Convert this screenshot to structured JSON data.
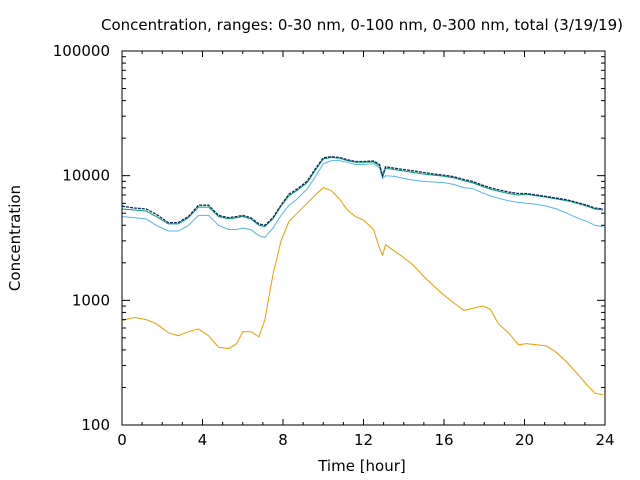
{
  "chart_data": {
    "type": "line",
    "title": "Concentration, ranges: 0-30 nm, 0-100 nm, 0-300 nm, total (3/19/19)",
    "xlabel": "Time [hour]",
    "ylabel": "Concentration",
    "xlim": [
      0,
      24
    ],
    "ylim": [
      100,
      100000
    ],
    "yscale": "log",
    "xticks": [
      0,
      4,
      8,
      12,
      16,
      20,
      24
    ],
    "yticks": [
      100,
      1000,
      10000,
      100000
    ],
    "ytick_labels": [
      "100",
      "1000",
      "10000",
      "100000"
    ],
    "grid": false,
    "legend": "none",
    "series": [
      {
        "color": "#e69f00",
        "x": [
          0,
          0.6,
          1.2,
          1.7,
          2.3,
          2.8,
          3.3,
          3.8,
          4.3,
          4.8,
          5.3,
          5.7,
          6.0,
          6.4,
          6.8,
          7.1,
          7.5,
          7.9,
          8.3,
          8.7,
          9.2,
          9.6,
          10.0,
          10.4,
          10.8,
          11.2,
          11.6,
          12.0,
          12.5,
          12.8,
          12.95,
          13.1,
          13.5,
          14.0,
          14.5,
          15.0,
          15.5,
          16.0,
          16.5,
          17.0,
          17.4,
          17.9,
          18.3,
          18.7,
          19.2,
          19.7,
          20.1,
          20.6,
          21.1,
          21.6,
          22.1,
          22.6,
          23.1,
          23.5,
          23.9
        ],
        "y": [
          690,
          730,
          700,
          650,
          550,
          520,
          560,
          590,
          520,
          420,
          410,
          450,
          560,
          560,
          510,
          700,
          1600,
          3000,
          4300,
          5000,
          6000,
          7000,
          8000,
          7600,
          6500,
          5300,
          4700,
          4400,
          3700,
          2600,
          2300,
          2800,
          2500,
          2200,
          1900,
          1550,
          1300,
          1100,
          950,
          830,
          860,
          900,
          850,
          650,
          550,
          440,
          450,
          440,
          430,
          380,
          320,
          260,
          210,
          180,
          175
        ]
      },
      {
        "color": "#56b4e9",
        "x": [
          0,
          0.6,
          1.2,
          1.7,
          2.3,
          2.8,
          3.3,
          3.8,
          4.3,
          4.8,
          5.3,
          5.7,
          6.0,
          6.4,
          6.8,
          7.1,
          7.5,
          7.9,
          8.3,
          8.7,
          9.2,
          9.6,
          10.0,
          10.4,
          10.8,
          11.2,
          11.6,
          12.0,
          12.5,
          12.8,
          12.95,
          13.1,
          13.5,
          14.0,
          14.5,
          15.0,
          15.5,
          16.0,
          16.5,
          17.0,
          17.4,
          17.9,
          18.3,
          18.7,
          19.2,
          19.7,
          20.1,
          20.6,
          21.1,
          21.6,
          22.1,
          22.6,
          23.1,
          23.5,
          23.9
        ],
        "y": [
          4700,
          4600,
          4500,
          4000,
          3600,
          3600,
          4000,
          4800,
          4800,
          4000,
          3700,
          3700,
          3800,
          3700,
          3300,
          3200,
          3800,
          4800,
          5800,
          6500,
          7800,
          9800,
          12500,
          13200,
          13200,
          12800,
          12300,
          12300,
          12500,
          11500,
          9500,
          10000,
          9900,
          9500,
          9200,
          9000,
          8900,
          8800,
          8500,
          8000,
          7900,
          7300,
          6900,
          6600,
          6300,
          6100,
          6000,
          5900,
          5700,
          5400,
          5000,
          4600,
          4300,
          4000,
          3900
        ]
      },
      {
        "color": "#009e73",
        "x": [
          0,
          0.6,
          1.2,
          1.7,
          2.3,
          2.8,
          3.3,
          3.8,
          4.3,
          4.8,
          5.3,
          5.7,
          6.0,
          6.4,
          6.8,
          7.1,
          7.5,
          7.9,
          8.3,
          8.7,
          9.2,
          9.6,
          10.0,
          10.4,
          10.8,
          11.2,
          11.6,
          12.0,
          12.5,
          12.8,
          12.95,
          13.1,
          13.5,
          14.0,
          14.5,
          15.0,
          15.5,
          16.0,
          16.5,
          17.0,
          17.4,
          17.9,
          18.3,
          18.7,
          19.2,
          19.7,
          20.1,
          20.6,
          21.1,
          21.6,
          22.1,
          22.6,
          23.1,
          23.5,
          23.9
        ],
        "y": [
          5400,
          5300,
          5200,
          4700,
          4100,
          4100,
          4600,
          5600,
          5600,
          4700,
          4500,
          4600,
          4700,
          4500,
          4000,
          3900,
          4500,
          5700,
          6900,
          7600,
          8800,
          11000,
          13600,
          14000,
          13800,
          13200,
          12800,
          12800,
          12900,
          12000,
          9800,
          11500,
          11200,
          10900,
          10600,
          10300,
          10100,
          9900,
          9600,
          9100,
          8800,
          8200,
          7800,
          7500,
          7200,
          7000,
          7100,
          6900,
          6700,
          6500,
          6300,
          6000,
          5700,
          5400,
          5300
        ]
      },
      {
        "color": "#0b2a5e",
        "x": [
          0,
          0.6,
          1.2,
          1.7,
          2.3,
          2.8,
          3.3,
          3.8,
          4.3,
          4.8,
          5.3,
          5.7,
          6.0,
          6.4,
          6.8,
          7.1,
          7.5,
          7.9,
          8.3,
          8.7,
          9.2,
          9.6,
          10.0,
          10.4,
          10.8,
          11.2,
          11.6,
          12.0,
          12.5,
          12.8,
          12.95,
          13.1,
          13.5,
          14.0,
          14.5,
          15.0,
          15.5,
          16.0,
          16.5,
          17.0,
          17.4,
          17.9,
          18.3,
          18.7,
          19.2,
          19.7,
          20.1,
          20.6,
          21.1,
          21.6,
          22.1,
          22.6,
          23.1,
          23.5,
          23.9
        ],
        "y": [
          5700,
          5500,
          5400,
          4900,
          4200,
          4200,
          4700,
          5800,
          5800,
          4800,
          4600,
          4700,
          4800,
          4600,
          4100,
          4000,
          4600,
          5800,
          7100,
          7800,
          9000,
          11300,
          13900,
          14200,
          14000,
          13400,
          13000,
          13000,
          13100,
          12300,
          10000,
          11800,
          11500,
          11200,
          10900,
          10600,
          10300,
          10100,
          9800,
          9300,
          9000,
          8400,
          8000,
          7700,
          7400,
          7200,
          7200,
          7000,
          6800,
          6600,
          6400,
          6100,
          5800,
          5500,
          5400
        ]
      }
    ]
  }
}
